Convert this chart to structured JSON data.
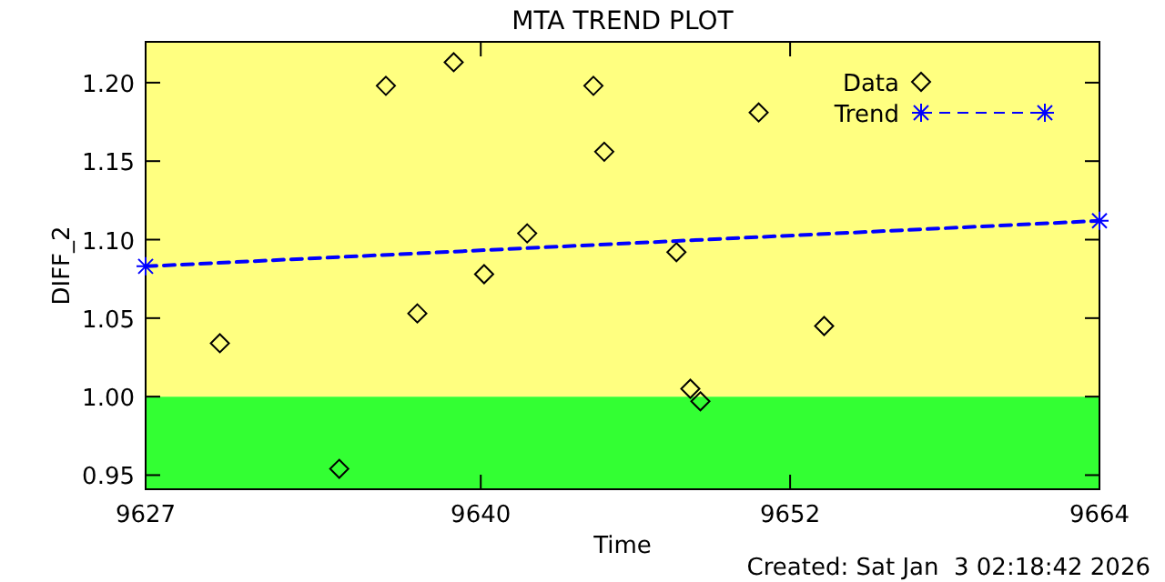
{
  "chart_data": {
    "type": "scatter",
    "title": "MTA TREND PLOT",
    "xlabel": "Time",
    "ylabel": "DIFF_2",
    "xlim": [
      9627,
      9664
    ],
    "xticks": [
      9627,
      9640,
      9652,
      9664
    ],
    "ylim": [
      0.941,
      1.226
    ],
    "yticks": [
      {
        "value": 0.95,
        "label": "0.95"
      },
      {
        "value": 1.0,
        "label": "1.00"
      },
      {
        "value": 1.05,
        "label": "1.05"
      },
      {
        "value": 1.1,
        "label": "1.10"
      },
      {
        "value": 1.15,
        "label": "1.15"
      },
      {
        "value": 1.2,
        "label": "1.20"
      }
    ],
    "bands": [
      {
        "axis": "y",
        "from": 0.941,
        "to": 1.0,
        "color": "#33ff33"
      },
      {
        "axis": "y",
        "from": 1.0,
        "to": 1.226,
        "color": "#ffff80"
      }
    ],
    "series": [
      {
        "name": "Data",
        "marker": "diamond",
        "color": "#000000",
        "x": [
          9629.88,
          9634.51,
          9636.32,
          9637.54,
          9638.95,
          9640.13,
          9641.8,
          9644.37,
          9644.79,
          9647.59,
          9648.13,
          9648.52,
          9650.78,
          9653.32
        ],
        "values": [
          1.034,
          0.954,
          1.198,
          1.053,
          1.213,
          1.078,
          1.104,
          1.198,
          1.156,
          1.092,
          1.005,
          0.997,
          1.181,
          1.045
        ]
      },
      {
        "name": "Trend",
        "type": "line",
        "marker": "cross",
        "line_style": "dashed",
        "color": "#0000ff",
        "x": [
          9627,
          9664
        ],
        "values": [
          1.083,
          1.112
        ]
      }
    ],
    "legend": "top right",
    "grid": false,
    "annotations": [
      "Created: Sat Jan  3 02:18:42 2026"
    ]
  }
}
